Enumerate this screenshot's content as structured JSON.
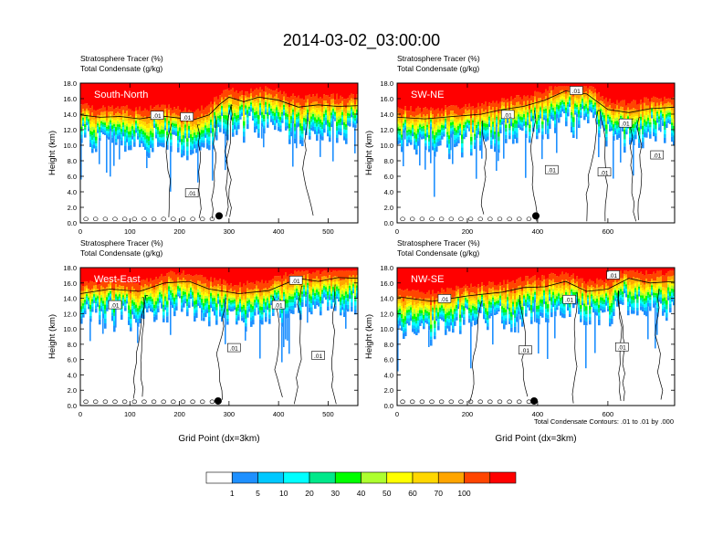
{
  "title": "2014-03-02_03:00:00",
  "header_lines": [
    "Stratosphere Tracer   (%)",
    "Total Condensate   (g/kg)"
  ],
  "ylabel": "Height (km)",
  "xlabel": "Grid Point (dx=3km)",
  "contour_note": "Total Condensate Contours: .01 to .01 by .000",
  "colorbar": {
    "levels": [
      "1",
      "5",
      "10",
      "20",
      "30",
      "40",
      "50",
      "60",
      "70",
      "100"
    ],
    "colors": [
      "#ffffff",
      "#1e90ff",
      "#00c8ff",
      "#00ffff",
      "#00e88a",
      "#00ff00",
      "#adff2f",
      "#ffff00",
      "#ffd700",
      "#ffa500",
      "#ff4500",
      "#ff0000"
    ]
  },
  "chart_data": [
    {
      "type": "heatmap",
      "panel_label": "South-North",
      "xlim": [
        0,
        560
      ],
      "ylim": [
        0,
        18
      ],
      "xticks": [
        0,
        100,
        200,
        300,
        400,
        500
      ],
      "yticks": [
        "0.0",
        "2.0",
        "4.0",
        "6.0",
        "8.0",
        "10.0",
        "12.0",
        "14.0",
        "16.0",
        "18.0"
      ],
      "xlabel": "",
      "tropopause_profile": [
        [
          0,
          13.5
        ],
        [
          40,
          13.2
        ],
        [
          80,
          13.3
        ],
        [
          120,
          13.0
        ],
        [
          160,
          13.4
        ],
        [
          200,
          13.1
        ],
        [
          230,
          12.9
        ],
        [
          260,
          13.5
        ],
        [
          280,
          14.8
        ],
        [
          300,
          15.8
        ],
        [
          330,
          15.2
        ],
        [
          360,
          15.8
        ],
        [
          400,
          15.4
        ],
        [
          440,
          14.5
        ],
        [
          480,
          14.8
        ],
        [
          520,
          14.6
        ],
        [
          560,
          14.7
        ]
      ],
      "contour_labels": [
        {
          "text": ".01",
          "x": 155,
          "y": 13.8
        },
        {
          "text": ".01",
          "x": 215,
          "y": 13.6
        },
        {
          "text": ".01",
          "x": 225,
          "y": 3.8
        }
      ],
      "marker": {
        "x": 280,
        "y": 0.9
      }
    },
    {
      "type": "heatmap",
      "panel_label": "SW-NE",
      "xlim": [
        0,
        790
      ],
      "ylim": [
        0,
        18
      ],
      "xticks": [
        0,
        200,
        400,
        600
      ],
      "yticks": [
        "0.0",
        "2.0",
        "4.0",
        "6.0",
        "8.0",
        "10.0",
        "12.0",
        "14.0",
        "16.0",
        "18.0"
      ],
      "xlabel": "",
      "tropopause_profile": [
        [
          0,
          13.2
        ],
        [
          80,
          13.0
        ],
        [
          160,
          13.3
        ],
        [
          240,
          13.6
        ],
        [
          300,
          14.2
        ],
        [
          360,
          14.6
        ],
        [
          420,
          15.4
        ],
        [
          480,
          16.6
        ],
        [
          540,
          16.2
        ],
        [
          600,
          14.2
        ],
        [
          660,
          13.8
        ],
        [
          720,
          14.3
        ],
        [
          790,
          14.5
        ]
      ],
      "contour_labels": [
        {
          "text": ".01",
          "x": 510,
          "y": 17.0
        },
        {
          "text": ".01",
          "x": 315,
          "y": 13.9
        },
        {
          "text": ".01",
          "x": 650,
          "y": 12.8
        },
        {
          "text": ".01",
          "x": 740,
          "y": 8.7
        },
        {
          "text": ".01",
          "x": 440,
          "y": 6.8
        },
        {
          "text": ".01",
          "x": 590,
          "y": 6.5
        }
      ],
      "marker": {
        "x": 395,
        "y": 0.9
      }
    },
    {
      "type": "heatmap",
      "panel_label": "West-East",
      "xlim": [
        0,
        560
      ],
      "ylim": [
        0,
        18
      ],
      "xticks": [
        0,
        100,
        200,
        300,
        400,
        500
      ],
      "yticks": [
        "0.0",
        "2.0",
        "4.0",
        "6.0",
        "8.0",
        "10.0",
        "12.0",
        "14.0",
        "16.0",
        "18.0"
      ],
      "xlabel": "Grid Point (dx=3km)",
      "tropopause_profile": [
        [
          0,
          14.2
        ],
        [
          60,
          14.8
        ],
        [
          120,
          14.5
        ],
        [
          170,
          15.6
        ],
        [
          220,
          15.8
        ],
        [
          260,
          14.8
        ],
        [
          320,
          14.2
        ],
        [
          380,
          14.6
        ],
        [
          440,
          16.2
        ],
        [
          480,
          15.8
        ],
        [
          520,
          16.3
        ],
        [
          560,
          16.2
        ]
      ],
      "contour_labels": [
        {
          "text": ".01",
          "x": 435,
          "y": 16.3
        },
        {
          "text": ".01",
          "x": 70,
          "y": 13.1
        },
        {
          "text": ".01",
          "x": 400,
          "y": 13.1
        },
        {
          "text": ".01",
          "x": 310,
          "y": 7.5
        },
        {
          "text": ".01",
          "x": 480,
          "y": 6.5
        }
      ],
      "marker": {
        "x": 278,
        "y": 0.6
      }
    },
    {
      "type": "heatmap",
      "panel_label": "NW-SE",
      "xlim": [
        0,
        790
      ],
      "ylim": [
        0,
        18
      ],
      "xticks": [
        0,
        200,
        400,
        600
      ],
      "yticks": [
        "0.0",
        "2.0",
        "4.0",
        "6.0",
        "8.0",
        "10.0",
        "12.0",
        "14.0",
        "16.0",
        "18.0"
      ],
      "xlabel": "Grid Point (dx=3km)",
      "tropopause_profile": [
        [
          0,
          13.8
        ],
        [
          100,
          13.2
        ],
        [
          200,
          13.9
        ],
        [
          300,
          14.4
        ],
        [
          360,
          15.0
        ],
        [
          420,
          15.1
        ],
        [
          480,
          15.8
        ],
        [
          540,
          14.5
        ],
        [
          600,
          14.8
        ],
        [
          660,
          16.2
        ],
        [
          720,
          15.6
        ],
        [
          790,
          15.8
        ]
      ],
      "contour_labels": [
        {
          "text": ".01",
          "x": 615,
          "y": 17.0
        },
        {
          "text": ".01",
          "x": 135,
          "y": 13.9
        },
        {
          "text": ".01",
          "x": 490,
          "y": 13.8
        },
        {
          "text": ".01",
          "x": 365,
          "y": 7.2
        },
        {
          "text": ".01",
          "x": 640,
          "y": 7.6
        }
      ],
      "marker": {
        "x": 390,
        "y": 0.6
      }
    }
  ]
}
